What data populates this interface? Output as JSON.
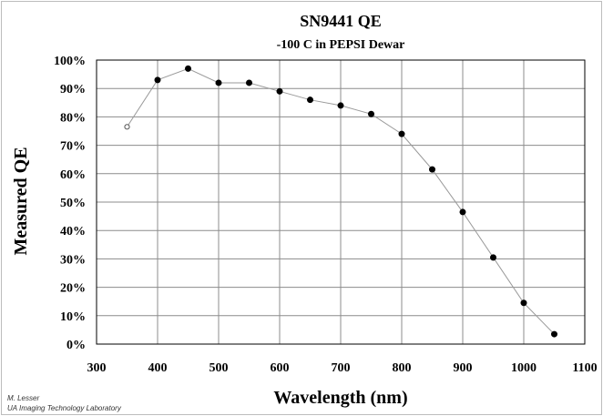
{
  "chart_data": {
    "type": "line",
    "title": "SN9441 QE",
    "subtitle": "-100 C in PEPSI Dewar",
    "xlabel": "Wavelength (nm)",
    "ylabel": "Measured QE",
    "xlim": [
      300,
      1100
    ],
    "ylim": [
      0,
      100
    ],
    "x_ticks": [
      "300",
      "400",
      "500",
      "600",
      "700",
      "800",
      "900",
      "1000",
      "1100"
    ],
    "y_ticks": [
      "0%",
      "10%",
      "20%",
      "30%",
      "40%",
      "50%",
      "60%",
      "70%",
      "80%",
      "90%",
      "100%"
    ],
    "grid": true,
    "series": [
      {
        "x": [
          350,
          400,
          450,
          500,
          550,
          600,
          650,
          700,
          750,
          800,
          850,
          900,
          950,
          1000,
          1050
        ],
        "y": [
          76.5,
          93,
          97,
          92,
          92,
          89,
          86,
          84,
          81,
          74,
          61.5,
          46.5,
          30.5,
          14.5,
          3.5
        ],
        "marker_open": [
          true,
          false,
          false,
          false,
          false,
          false,
          false,
          false,
          false,
          false,
          false,
          false,
          false,
          false,
          false
        ]
      }
    ]
  },
  "credit": {
    "author": "M. Lesser",
    "lab": "UA Imaging Technology Laboratory"
  },
  "colors": {
    "line": "#9a9a9a",
    "grid": "#8c8c8c",
    "marker": "#000000",
    "frame": "#bdbdbd"
  }
}
